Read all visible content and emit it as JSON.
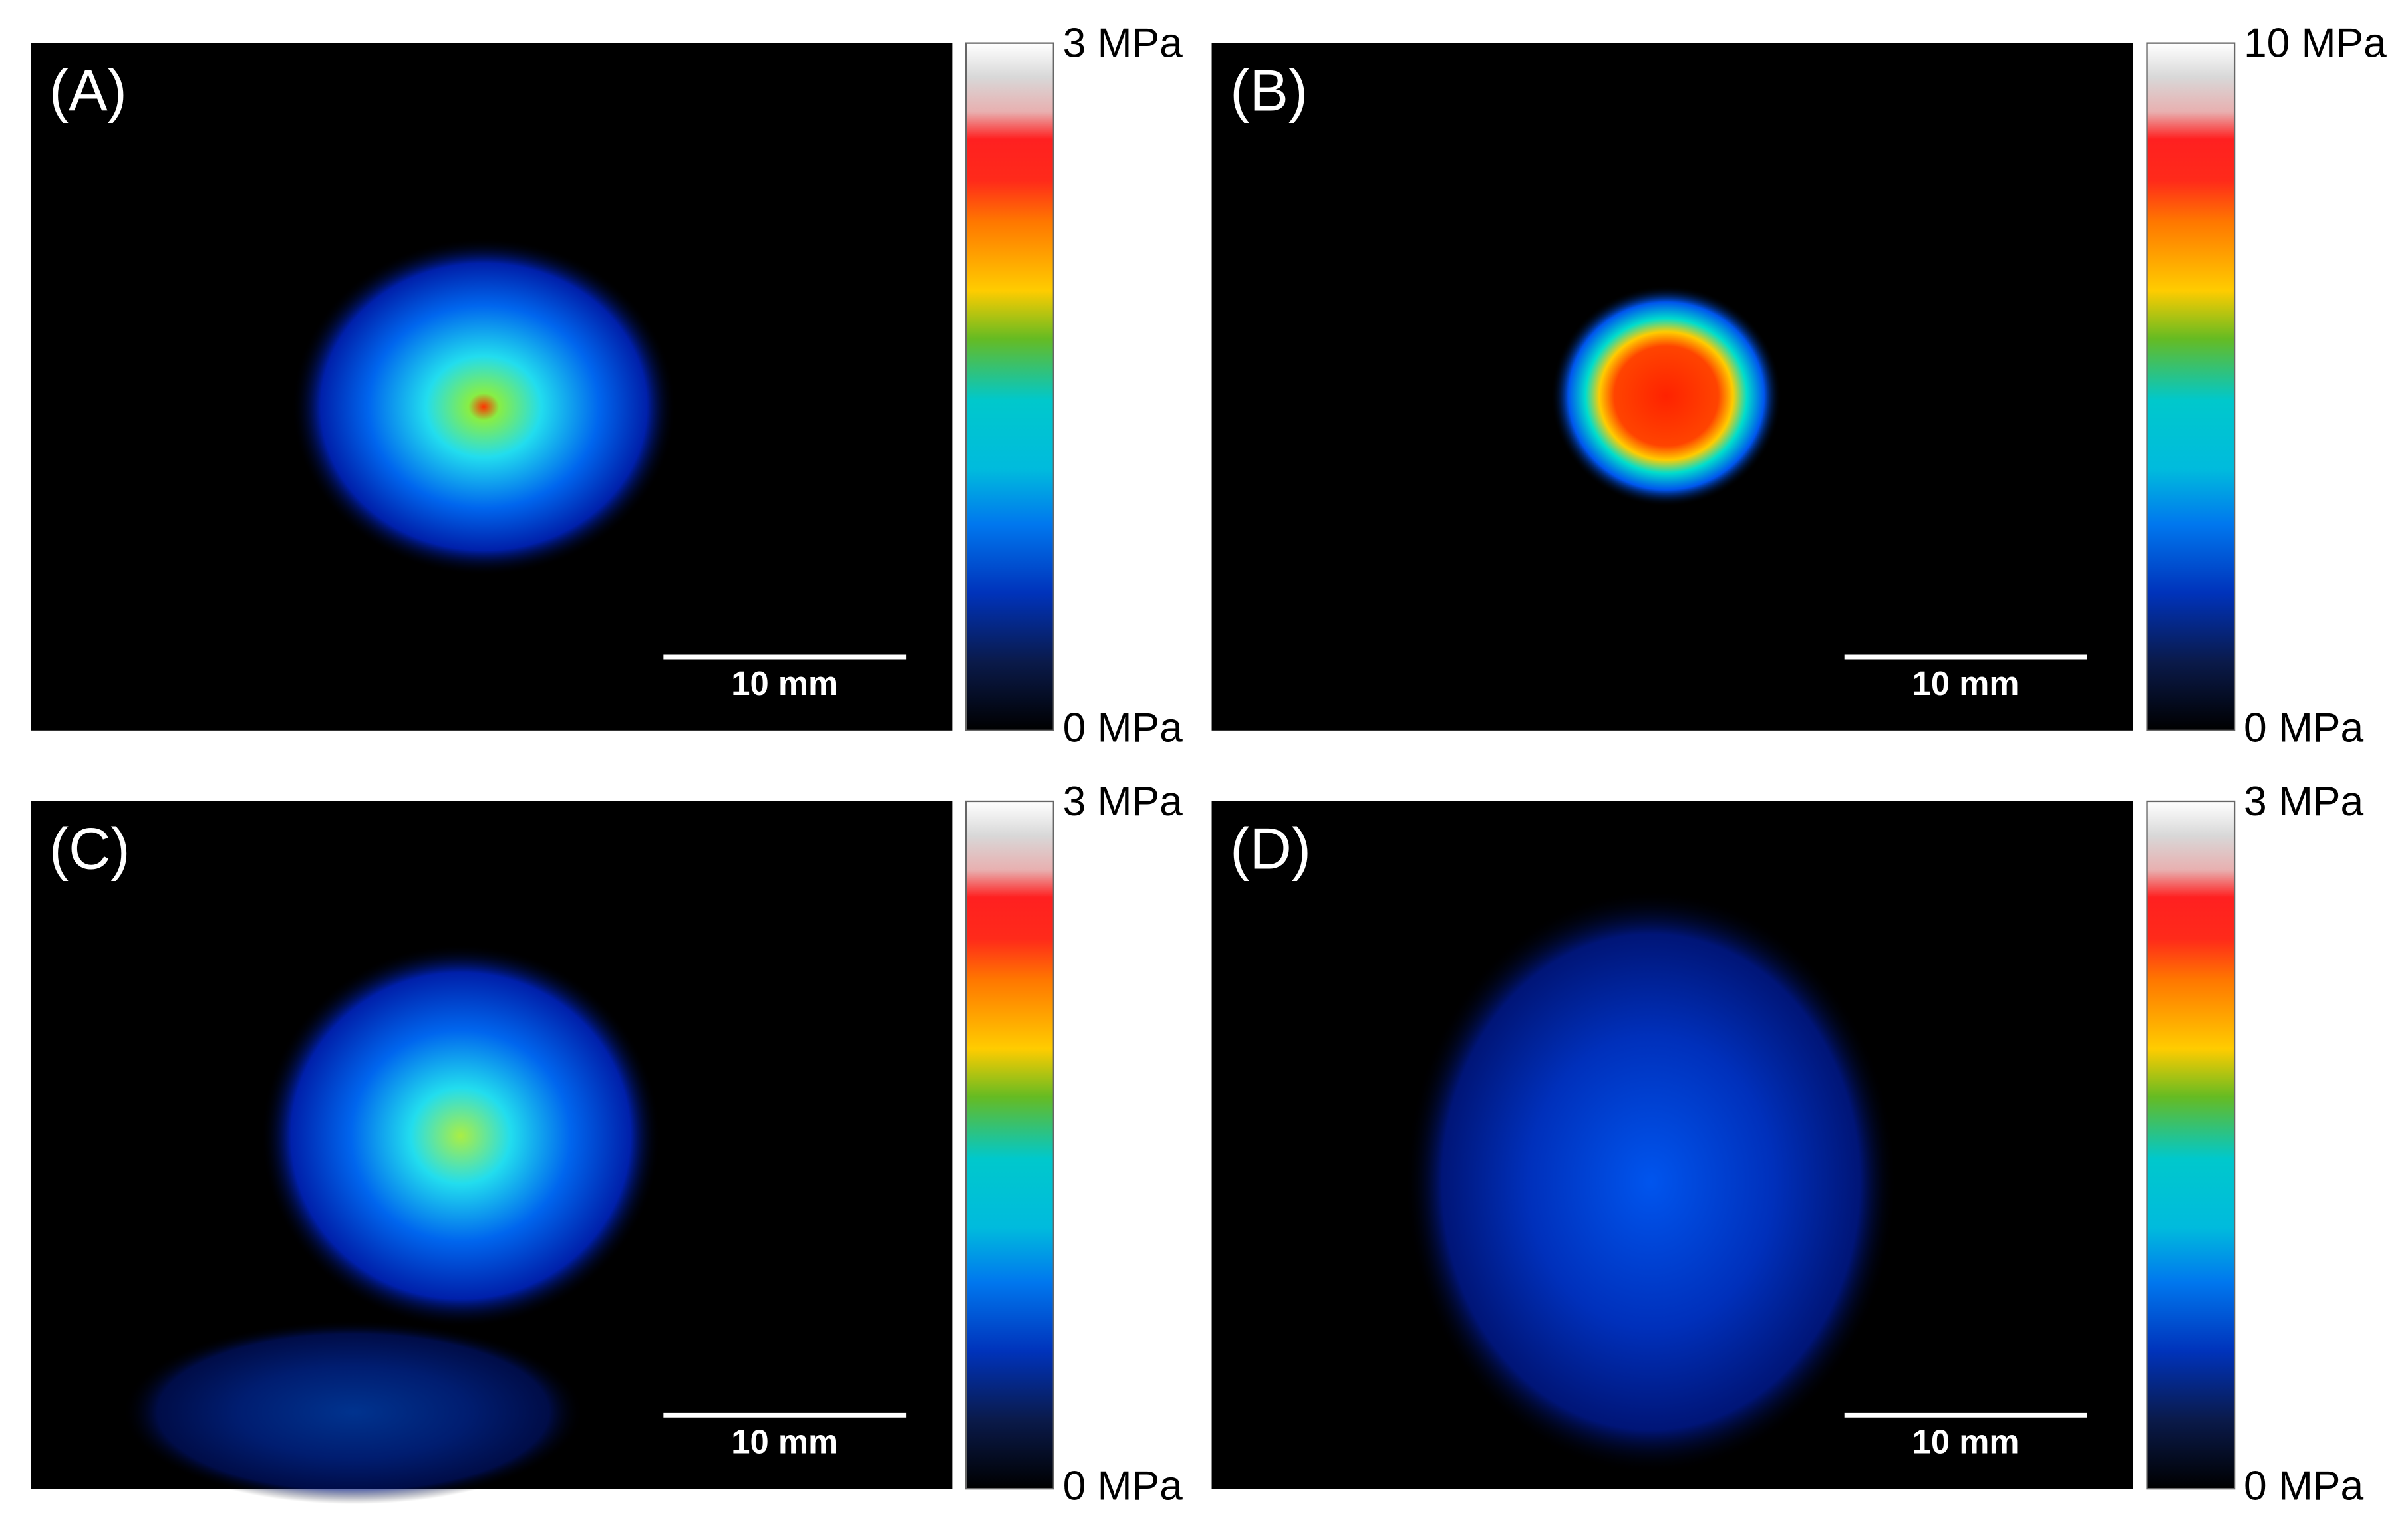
{
  "panels": [
    {
      "label": "(A)",
      "scale_bar": "10 mm",
      "colorbar_max": "3 MPa",
      "colorbar_min": "0 MPa"
    },
    {
      "label": "(B)",
      "scale_bar": "10 mm",
      "colorbar_max": "10 MPa",
      "colorbar_min": "0 MPa"
    },
    {
      "label": "(C)",
      "scale_bar": "10 mm",
      "colorbar_max": "3 MPa",
      "colorbar_min": "0 MPa"
    },
    {
      "label": "(D)",
      "scale_bar": "10 mm",
      "colorbar_max": "3 MPa",
      "colorbar_min": "0 MPa"
    }
  ]
}
